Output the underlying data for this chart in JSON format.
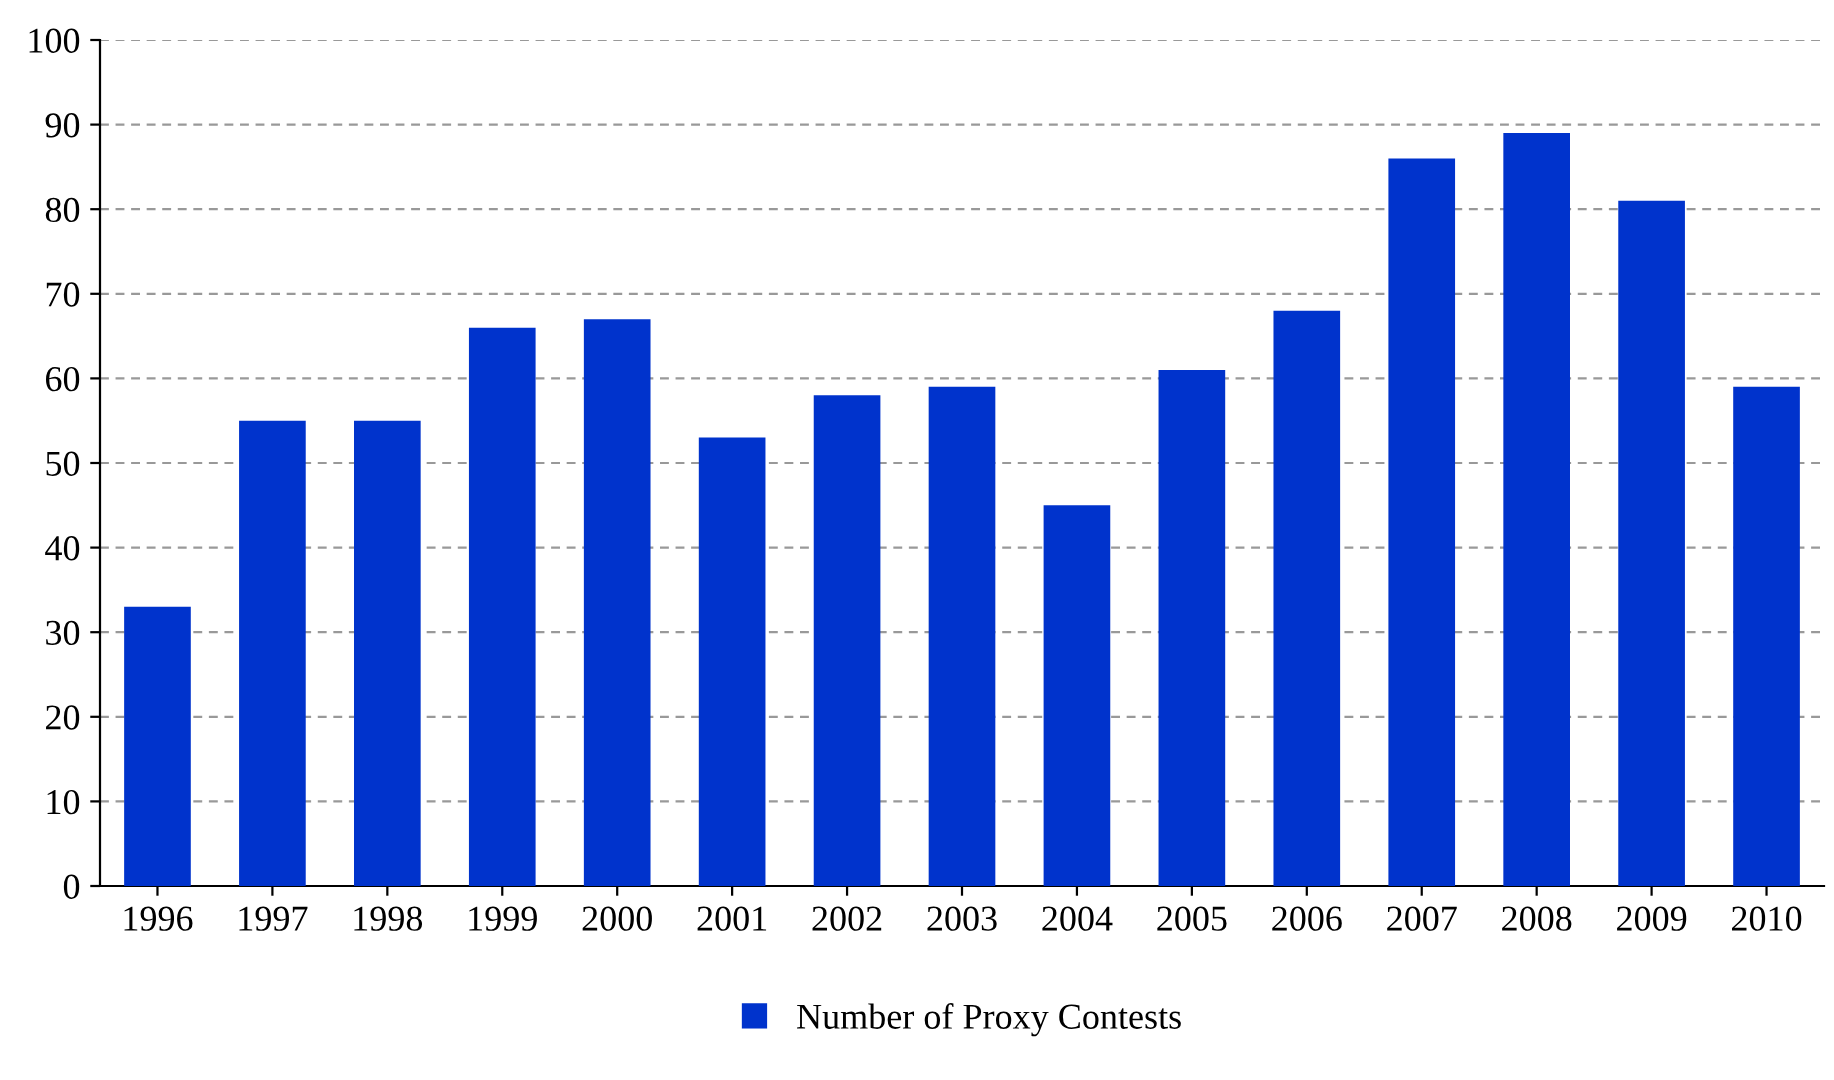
{
  "chart_data": {
    "type": "bar",
    "categories": [
      "1996",
      "1997",
      "1998",
      "1999",
      "2000",
      "2001",
      "2002",
      "2003",
      "2004",
      "2005",
      "2006",
      "2007",
      "2008",
      "2009",
      "2010"
    ],
    "series": [
      {
        "name": "Number of Proxy Contests",
        "color": "#0033cc",
        "values": [
          33,
          55,
          55,
          66,
          67,
          53,
          58,
          59,
          45,
          61,
          68,
          86,
          89,
          81,
          59
        ]
      }
    ],
    "ylim": [
      0,
      100
    ],
    "yticks": [
      0,
      10,
      20,
      30,
      40,
      50,
      60,
      70,
      80,
      90,
      100
    ],
    "grid": "y",
    "legend": "bottom"
  }
}
